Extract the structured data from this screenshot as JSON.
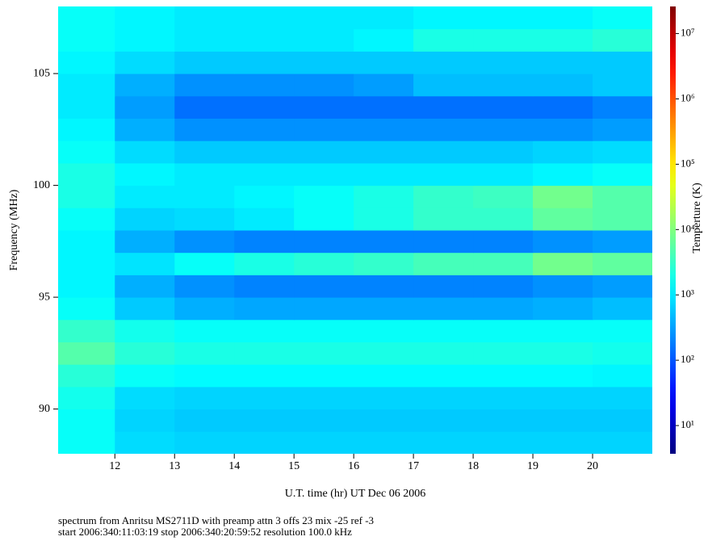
{
  "chart_data": {
    "type": "heatmap",
    "x_label": "U.T. time (hr) UT Dec 06 2006",
    "y_label": "Frequency (MHz)",
    "colorbar_label": "Temperture (K)",
    "notes": [
      "spectrum from Anritsu MS2711D with preamp attn 3 offs 23 mix -25 ref -3",
      "start 2006:340:11:03:19 stop 2006:340:20:59:52 resolution 100.0 kHz"
    ],
    "x": [
      11.5,
      12.5,
      13.5,
      14.5,
      15.5,
      16.5,
      17.5,
      18.5,
      19.5,
      20.5
    ],
    "y": [
      88.5,
      89.5,
      90.5,
      91.5,
      92.5,
      93.5,
      94.5,
      95.5,
      96.5,
      97.5,
      98.5,
      99.5,
      100.5,
      101.5,
      102.5,
      103.5,
      104.5,
      105.5,
      106.5,
      107.5
    ],
    "values": [
      [
        1500,
        800,
        700,
        700,
        700,
        700,
        700,
        700,
        700,
        700
      ],
      [
        1500,
        700,
        600,
        600,
        600,
        600,
        600,
        600,
        600,
        600
      ],
      [
        1800,
        800,
        700,
        700,
        700,
        700,
        700,
        700,
        700,
        700
      ],
      [
        2500,
        1500,
        1300,
        1300,
        1300,
        1300,
        1300,
        1300,
        1300,
        1200
      ],
      [
        5000,
        2500,
        2000,
        2000,
        2000,
        2000,
        2000,
        2000,
        2000,
        1800
      ],
      [
        3000,
        1800,
        1500,
        1500,
        1500,
        1500,
        1500,
        1500,
        1500,
        1500
      ],
      [
        1500,
        600,
        400,
        350,
        350,
        350,
        350,
        350,
        400,
        500
      ],
      [
        1200,
        400,
        250,
        200,
        200,
        200,
        200,
        200,
        250,
        300
      ],
      [
        1200,
        900,
        1500,
        2000,
        2500,
        3000,
        4000,
        4000,
        8000,
        6000
      ],
      [
        1200,
        400,
        250,
        200,
        200,
        200,
        200,
        200,
        250,
        300
      ],
      [
        1500,
        700,
        800,
        1000,
        1500,
        2000,
        3000,
        3000,
        6000,
        5000
      ],
      [
        2000,
        1000,
        1000,
        1200,
        1500,
        2000,
        3000,
        3500,
        8000,
        5000
      ],
      [
        2000,
        1200,
        1000,
        1000,
        1000,
        1000,
        1000,
        1000,
        1200,
        1500
      ],
      [
        1500,
        800,
        600,
        600,
        600,
        600,
        600,
        600,
        700,
        800
      ],
      [
        1200,
        400,
        250,
        250,
        250,
        250,
        250,
        250,
        250,
        300
      ],
      [
        1000,
        300,
        150,
        150,
        150,
        150,
        150,
        150,
        150,
        200
      ],
      [
        1000,
        400,
        250,
        250,
        250,
        300,
        500,
        500,
        500,
        600
      ],
      [
        1200,
        800,
        600,
        600,
        600,
        600,
        600,
        600,
        600,
        600
      ],
      [
        1500,
        1200,
        1000,
        1000,
        1000,
        1200,
        2000,
        2000,
        2000,
        2500
      ],
      [
        1500,
        1200,
        1000,
        1000,
        1000,
        1000,
        1200,
        1200,
        1200,
        1500
      ]
    ],
    "xlim": [
      11.05,
      21.0
    ],
    "ylim": [
      88,
      108
    ],
    "xticks": [
      12,
      13,
      14,
      15,
      16,
      17,
      18,
      19,
      20
    ],
    "yticks": [
      90,
      95,
      100,
      105
    ],
    "zlim": [
      3.7,
      26000000
    ],
    "zscale": "log",
    "colormap": "jet",
    "zticks": [
      {
        "value": 10,
        "label": "10¹"
      },
      {
        "value": 100,
        "label": "10²"
      },
      {
        "value": 1000,
        "label": "10³"
      },
      {
        "value": 10000,
        "label": "10⁴"
      },
      {
        "value": 100000,
        "label": "10⁵"
      },
      {
        "value": 1000000,
        "label": "10⁶"
      },
      {
        "value": 10000000,
        "label": "10⁷"
      }
    ]
  }
}
